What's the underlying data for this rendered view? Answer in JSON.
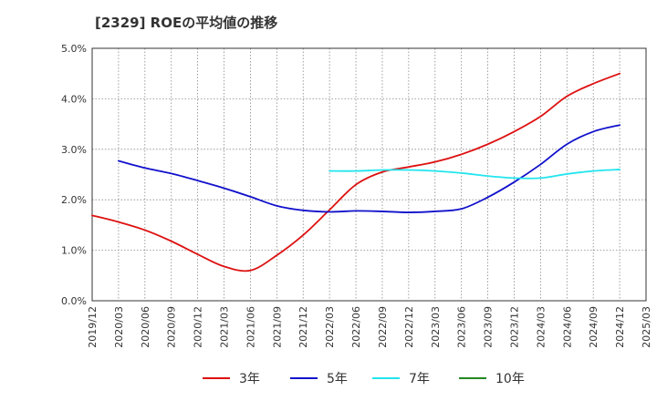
{
  "chart_data": {
    "type": "line",
    "title": "[2329]  ROEの平均値の推移",
    "xlabel": "",
    "ylabel": "",
    "ylim": [
      0,
      5
    ],
    "y_ticks": [
      "0.0%",
      "1.0%",
      "2.0%",
      "3.0%",
      "4.0%",
      "5.0%"
    ],
    "x_ticks": [
      "2019/12",
      "2020/03",
      "2020/06",
      "2020/09",
      "2020/12",
      "2021/03",
      "2021/06",
      "2021/09",
      "2021/12",
      "2022/03",
      "2022/06",
      "2022/09",
      "2022/12",
      "2023/03",
      "2023/06",
      "2023/09",
      "2023/12",
      "2024/03",
      "2024/06",
      "2024/09",
      "2024/12",
      "2025/03"
    ],
    "legend_position": "bottom",
    "series": [
      {
        "name": "3年",
        "color": "#dd1111",
        "points": [
          [
            "2019/12",
            1.69
          ],
          [
            "2020/03",
            1.56
          ],
          [
            "2020/06",
            1.4
          ],
          [
            "2020/09",
            1.18
          ],
          [
            "2020/12",
            0.92
          ],
          [
            "2021/03",
            0.68
          ],
          [
            "2021/06",
            0.6
          ],
          [
            "2021/09",
            0.9
          ],
          [
            "2021/12",
            1.3
          ],
          [
            "2022/03",
            1.8
          ],
          [
            "2022/06",
            2.3
          ],
          [
            "2022/09",
            2.55
          ],
          [
            "2022/12",
            2.65
          ],
          [
            "2023/03",
            2.75
          ],
          [
            "2023/06",
            2.9
          ],
          [
            "2023/09",
            3.1
          ],
          [
            "2023/12",
            3.35
          ],
          [
            "2024/03",
            3.65
          ],
          [
            "2024/06",
            4.05
          ],
          [
            "2024/09",
            4.3
          ],
          [
            "2024/12",
            4.5
          ]
        ]
      },
      {
        "name": "5年",
        "color": "#1111cc",
        "points": [
          [
            "2020/03",
            2.77
          ],
          [
            "2020/06",
            2.63
          ],
          [
            "2020/09",
            2.52
          ],
          [
            "2020/12",
            2.38
          ],
          [
            "2021/03",
            2.23
          ],
          [
            "2021/06",
            2.06
          ],
          [
            "2021/09",
            1.88
          ],
          [
            "2021/12",
            1.79
          ],
          [
            "2022/03",
            1.76
          ],
          [
            "2022/06",
            1.78
          ],
          [
            "2022/09",
            1.77
          ],
          [
            "2022/12",
            1.75
          ],
          [
            "2023/03",
            1.77
          ],
          [
            "2023/06",
            1.82
          ],
          [
            "2023/09",
            2.05
          ],
          [
            "2023/12",
            2.35
          ],
          [
            "2024/03",
            2.7
          ],
          [
            "2024/06",
            3.1
          ],
          [
            "2024/09",
            3.35
          ],
          [
            "2024/12",
            3.48
          ]
        ]
      },
      {
        "name": "7年",
        "color": "#22e5ee",
        "points": [
          [
            "2022/03",
            2.57
          ],
          [
            "2022/06",
            2.57
          ],
          [
            "2022/09",
            2.59
          ],
          [
            "2022/12",
            2.59
          ],
          [
            "2023/03",
            2.57
          ],
          [
            "2023/06",
            2.53
          ],
          [
            "2023/09",
            2.47
          ],
          [
            "2023/12",
            2.43
          ],
          [
            "2024/03",
            2.43
          ],
          [
            "2024/06",
            2.51
          ],
          [
            "2024/09",
            2.57
          ],
          [
            "2024/12",
            2.6
          ]
        ]
      },
      {
        "name": "10年",
        "color": "#228822",
        "points": []
      }
    ]
  }
}
